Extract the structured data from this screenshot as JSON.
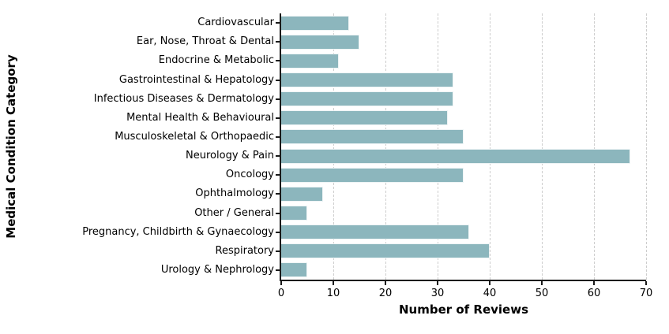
{
  "chart_data": {
    "type": "bar",
    "orientation": "horizontal",
    "title": "",
    "xlabel": "Number of Reviews",
    "ylabel": "Medical Condition Category",
    "categories": [
      "Cardiovascular",
      "Ear, Nose, Throat & Dental",
      "Endocrine & Metabolic",
      "Gastrointestinal & Hepatology",
      "Infectious Diseases & Dermatology",
      "Mental Health & Behavioural",
      "Musculoskeletal & Orthopaedic",
      "Neurology & Pain",
      "Oncology",
      "Ophthalmology",
      "Other / General",
      "Pregnancy, Childbirth & Gynaecology",
      "Respiratory",
      "Urology & Nephrology"
    ],
    "values": [
      13,
      15,
      11,
      33,
      33,
      32,
      35,
      67,
      35,
      8,
      5,
      36,
      40,
      5
    ],
    "xlim": [
      0,
      70
    ],
    "xticks": [
      0,
      10,
      20,
      30,
      40,
      50,
      60,
      70
    ],
    "grid": "vertical-dashed",
    "legend": "none",
    "bar_color": "#8cb6bd",
    "spine_color": "#1a1a1a",
    "gridline_color": "#cdcdcd",
    "bar_fraction": 0.8
  }
}
